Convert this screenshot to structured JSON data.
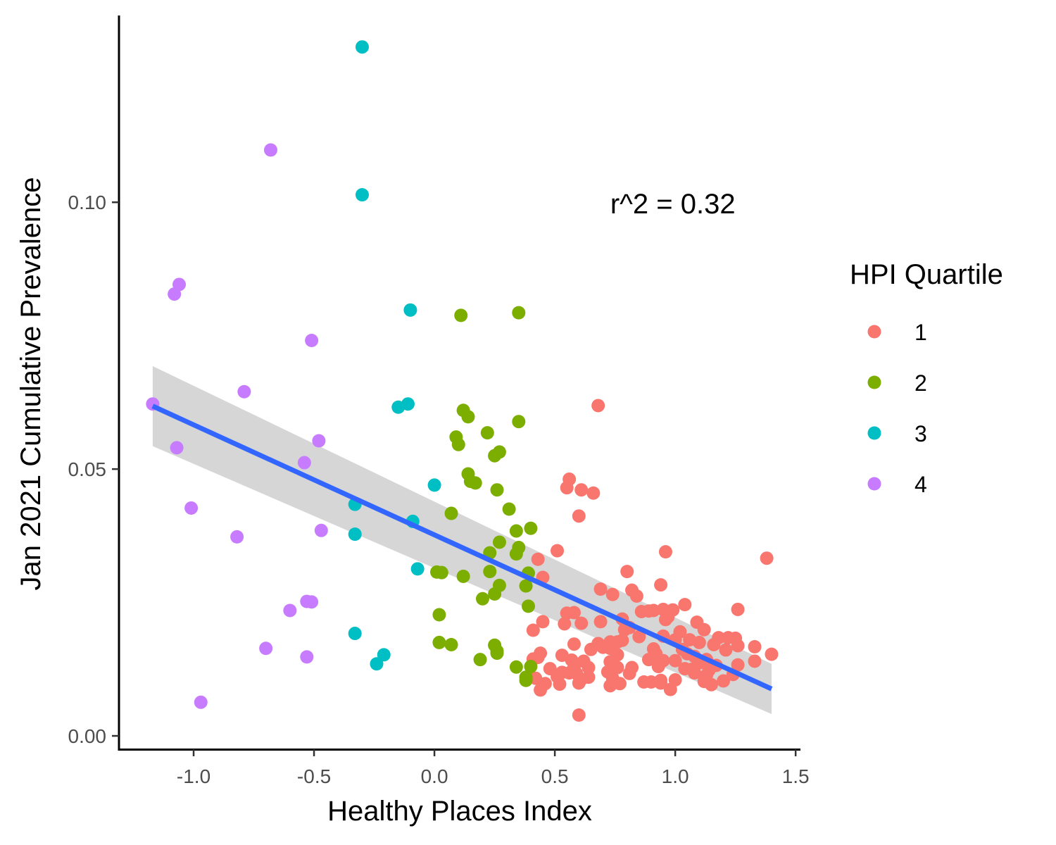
{
  "chart_data": {
    "type": "scatter",
    "xlabel": "Healthy Places Index",
    "ylabel": "Jan 2021 Cumulative Prevalence",
    "xlim": [
      -1.31,
      1.52
    ],
    "ylim": [
      -0.0025,
      0.135
    ],
    "x_ticks": [
      -1.0,
      -0.5,
      0.0,
      0.5,
      1.0,
      1.5
    ],
    "x_tick_labels": [
      "-1.0",
      "-0.5",
      "0.0",
      "0.5",
      "1.0",
      "1.5"
    ],
    "y_ticks": [
      0.0,
      0.05,
      0.1
    ],
    "y_tick_labels": [
      "0.00",
      "0.05",
      "0.10"
    ],
    "grid": false,
    "legend": {
      "title": "HPI Quartile",
      "placement": "right",
      "entries": [
        "1",
        "2",
        "3",
        "4"
      ]
    },
    "annotation": {
      "text": "r^2 = 0.32",
      "x": 0.99,
      "y": 0.0998
    },
    "trend_line": {
      "x": [
        -1.17,
        1.4
      ],
      "y": [
        0.0618,
        0.0088
      ],
      "band_lower": [
        0.0543,
        0.0041
      ],
      "band_upper": [
        0.0693,
        0.0135
      ],
      "color": "#3366FF",
      "band_color": "#999999"
    },
    "series": [
      {
        "name": "1",
        "color": "#F8766D",
        "points": [
          [
            0.68,
            0.0619
          ],
          [
            0.56,
            0.0481
          ],
          [
            0.55,
            0.0465
          ],
          [
            0.61,
            0.0461
          ],
          [
            0.66,
            0.0455
          ],
          [
            0.6,
            0.0412
          ],
          [
            0.96,
            0.0345
          ],
          [
            0.51,
            0.0347
          ],
          [
            1.38,
            0.0333
          ],
          [
            0.43,
            0.0331
          ],
          [
            0.8,
            0.0308
          ],
          [
            0.45,
            0.0297
          ],
          [
            0.94,
            0.0283
          ],
          [
            0.69,
            0.0275
          ],
          [
            0.82,
            0.0273
          ],
          [
            0.74,
            0.0265
          ],
          [
            0.84,
            0.0262
          ],
          [
            1.04,
            0.0246
          ],
          [
            0.99,
            0.0236
          ],
          [
            0.95,
            0.0237
          ],
          [
            0.91,
            0.0235
          ],
          [
            0.89,
            0.0234
          ],
          [
            0.86,
            0.0233
          ],
          [
            1.26,
            0.0237
          ],
          [
            0.55,
            0.023
          ],
          [
            0.58,
            0.0231
          ],
          [
            0.97,
            0.0223
          ],
          [
            0.96,
            0.0218
          ],
          [
            0.78,
            0.0219
          ],
          [
            0.45,
            0.0214
          ],
          [
            0.54,
            0.021
          ],
          [
            0.61,
            0.0211
          ],
          [
            0.69,
            0.0214
          ],
          [
            1.09,
            0.0213
          ],
          [
            0.41,
            0.0198
          ],
          [
            0.79,
            0.0199
          ],
          [
            0.81,
            0.0203
          ],
          [
            1.12,
            0.0199
          ],
          [
            1.02,
            0.0195
          ],
          [
            0.85,
            0.0186
          ],
          [
            0.95,
            0.0187
          ],
          [
            1.18,
            0.0184
          ],
          [
            1.22,
            0.0184
          ],
          [
            1.25,
            0.0183
          ],
          [
            1.1,
            0.0175
          ],
          [
            1.06,
            0.018
          ],
          [
            1.0,
            0.018
          ],
          [
            0.78,
            0.0179
          ],
          [
            0.76,
            0.0176
          ],
          [
            0.73,
            0.0176
          ],
          [
            0.68,
            0.0173
          ],
          [
            1.16,
            0.0171
          ],
          [
            1.26,
            0.0169
          ],
          [
            1.33,
            0.0167
          ],
          [
            0.58,
            0.0172
          ],
          [
            0.65,
            0.0162
          ],
          [
            0.7,
            0.0166
          ],
          [
            0.73,
            0.0164
          ],
          [
            0.91,
            0.0163
          ],
          [
            1.03,
            0.0162
          ],
          [
            1.21,
            0.0161
          ],
          [
            1.4,
            0.0153
          ],
          [
            0.44,
            0.0155
          ],
          [
            0.53,
            0.0151
          ],
          [
            0.76,
            0.0152
          ],
          [
            0.92,
            0.0154
          ],
          [
            1.05,
            0.0154
          ],
          [
            1.08,
            0.0149
          ],
          [
            1.13,
            0.0143
          ],
          [
            1.33,
            0.014
          ],
          [
            0.41,
            0.0144
          ],
          [
            0.43,
            0.0147
          ],
          [
            0.57,
            0.0142
          ],
          [
            0.62,
            0.014
          ],
          [
            0.73,
            0.0139
          ],
          [
            0.89,
            0.0143
          ],
          [
            0.95,
            0.0141
          ],
          [
            1.0,
            0.0141
          ],
          [
            1.1,
            0.0137
          ],
          [
            1.17,
            0.0132
          ],
          [
            1.26,
            0.0133
          ],
          [
            0.48,
            0.0126
          ],
          [
            0.58,
            0.0129
          ],
          [
            0.64,
            0.0128
          ],
          [
            0.76,
            0.0128
          ],
          [
            0.82,
            0.0128
          ],
          [
            0.93,
            0.013
          ],
          [
            1.04,
            0.0126
          ],
          [
            1.07,
            0.0125
          ],
          [
            1.14,
            0.0123
          ],
          [
            0.53,
            0.0119
          ],
          [
            0.56,
            0.0118
          ],
          [
            0.59,
            0.0117
          ],
          [
            0.72,
            0.012
          ],
          [
            0.81,
            0.0117
          ],
          [
            1.08,
            0.0118
          ],
          [
            1.13,
            0.0114
          ],
          [
            1.24,
            0.0115
          ],
          [
            0.42,
            0.0108
          ],
          [
            0.51,
            0.0111
          ],
          [
            0.61,
            0.0106
          ],
          [
            0.64,
            0.011
          ],
          [
            0.74,
            0.0108
          ],
          [
            0.9,
            0.0101
          ],
          [
            0.94,
            0.0104
          ],
          [
            1.0,
            0.0105
          ],
          [
            1.12,
            0.0102
          ],
          [
            1.2,
            0.0103
          ],
          [
            0.46,
            0.0098
          ],
          [
            0.52,
            0.0097
          ],
          [
            0.6,
            0.0099
          ],
          [
            0.73,
            0.0094
          ],
          [
            0.77,
            0.0098
          ],
          [
            0.87,
            0.0101
          ],
          [
            0.94,
            0.0099
          ],
          [
            1.15,
            0.0096
          ],
          [
            0.44,
            0.0086
          ],
          [
            0.98,
            0.0087
          ],
          [
            0.6,
            0.0039
          ]
        ]
      },
      {
        "name": "2",
        "color": "#7CAE00",
        "points": [
          [
            0.11,
            0.0788
          ],
          [
            0.35,
            0.0793
          ],
          [
            0.12,
            0.061
          ],
          [
            0.14,
            0.0598
          ],
          [
            0.35,
            0.0589
          ],
          [
            0.22,
            0.0568
          ],
          [
            0.09,
            0.056
          ],
          [
            0.1,
            0.0546
          ],
          [
            0.27,
            0.0532
          ],
          [
            0.25,
            0.0525
          ],
          [
            0.14,
            0.0491
          ],
          [
            0.15,
            0.0477
          ],
          [
            0.17,
            0.0474
          ],
          [
            0.26,
            0.0461
          ],
          [
            0.31,
            0.0425
          ],
          [
            0.07,
            0.0417
          ],
          [
            0.4,
            0.0389
          ],
          [
            0.34,
            0.0384
          ],
          [
            0.27,
            0.0363
          ],
          [
            0.35,
            0.0353
          ],
          [
            0.23,
            0.0343
          ],
          [
            0.34,
            0.0341
          ],
          [
            0.01,
            0.0307
          ],
          [
            0.03,
            0.0306
          ],
          [
            0.23,
            0.0308
          ],
          [
            0.39,
            0.0305
          ],
          [
            0.12,
            0.0299
          ],
          [
            0.27,
            0.0282
          ],
          [
            0.38,
            0.0281
          ],
          [
            0.25,
            0.0266
          ],
          [
            0.2,
            0.0257
          ],
          [
            0.39,
            0.0243
          ],
          [
            0.02,
            0.0227
          ],
          [
            0.02,
            0.0175
          ],
          [
            0.07,
            0.0171
          ],
          [
            0.25,
            0.017
          ],
          [
            0.26,
            0.0159
          ],
          [
            0.26,
            0.0155
          ],
          [
            0.19,
            0.0143
          ],
          [
            0.34,
            0.0129
          ],
          [
            0.4,
            0.013
          ],
          [
            0.38,
            0.011
          ],
          [
            0.38,
            0.0104
          ]
        ]
      },
      {
        "name": "3",
        "color": "#00BFC4",
        "points": [
          [
            -0.3,
            0.1291
          ],
          [
            -0.3,
            0.1014
          ],
          [
            -0.1,
            0.0798
          ],
          [
            -0.11,
            0.0622
          ],
          [
            -0.15,
            0.0616
          ],
          [
            0.0,
            0.047
          ],
          [
            -0.33,
            0.0434
          ],
          [
            -0.09,
            0.0402
          ],
          [
            -0.33,
            0.0378
          ],
          [
            -0.07,
            0.0313
          ],
          [
            -0.33,
            0.0192
          ],
          [
            -0.21,
            0.0152
          ],
          [
            -0.24,
            0.0135
          ]
        ]
      },
      {
        "name": "4",
        "color": "#C77CFF",
        "points": [
          [
            -0.68,
            0.1098
          ],
          [
            -1.06,
            0.0846
          ],
          [
            -1.08,
            0.0828
          ],
          [
            -0.51,
            0.0741
          ],
          [
            -0.79,
            0.0645
          ],
          [
            -1.17,
            0.0622
          ],
          [
            -0.48,
            0.0553
          ],
          [
            -1.07,
            0.054
          ],
          [
            -0.54,
            0.0512
          ],
          [
            -1.01,
            0.0427
          ],
          [
            -0.47,
            0.0385
          ],
          [
            -0.82,
            0.0373
          ],
          [
            -0.53,
            0.0252
          ],
          [
            -0.51,
            0.0251
          ],
          [
            -0.6,
            0.0235
          ],
          [
            -0.7,
            0.0164
          ],
          [
            -0.53,
            0.0148
          ],
          [
            -0.97,
            0.0063
          ]
        ]
      }
    ]
  }
}
